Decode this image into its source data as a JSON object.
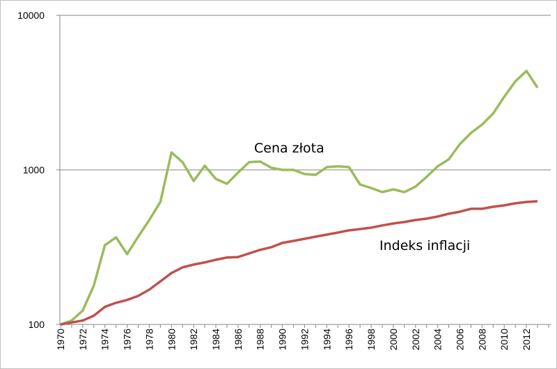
{
  "chart_data": {
    "type": "line",
    "title": "",
    "xlabel": "",
    "ylabel": "",
    "y_scale": "log",
    "ylim": [
      100,
      10000
    ],
    "y_ticks": [
      "100",
      "1000",
      "10000"
    ],
    "x": [
      1970,
      1971,
      1972,
      1973,
      1974,
      1975,
      1976,
      1977,
      1978,
      1979,
      1980,
      1981,
      1982,
      1983,
      1984,
      1985,
      1986,
      1987,
      1988,
      1989,
      1990,
      1991,
      1992,
      1993,
      1994,
      1995,
      1996,
      1997,
      1998,
      1999,
      2000,
      2001,
      2002,
      2003,
      2004,
      2005,
      2006,
      2007,
      2008,
      2009,
      2010,
      2011,
      2012,
      2013
    ],
    "x_tick_labels": [
      "1970",
      "1972",
      "1974",
      "1976",
      "1978",
      "1980",
      "1982",
      "1984",
      "1986",
      "1988",
      "1990",
      "1992",
      "1994",
      "1996",
      "1998",
      "2000",
      "2002",
      "2004",
      "2006",
      "2008",
      "2010",
      "2012"
    ],
    "grid": "horizontal major",
    "legend": "none (inline labels)",
    "series": [
      {
        "name": "Cena złota",
        "color": "#9bbb59",
        "values": [
          100,
          106,
          123,
          179,
          326,
          366,
          285,
          370,
          474,
          621,
          1297,
          1122,
          847,
          1064,
          874,
          813,
          960,
          1122,
          1132,
          1032,
          1000,
          1000,
          940,
          929,
          1042,
          1054,
          1042,
          804,
          764,
          718,
          748,
          718,
          780,
          901,
          1054,
          1169,
          1468,
          1733,
          1963,
          2317,
          2972,
          3733,
          4365,
          3401
        ]
      },
      {
        "name": "Indeks inflacji",
        "color": "#c0504d",
        "values": [
          100,
          103,
          106,
          114,
          130,
          138,
          144,
          153,
          168,
          190,
          215,
          234,
          244,
          252,
          262,
          271,
          273,
          288,
          304,
          316,
          337,
          347,
          358,
          370,
          381,
          393,
          406,
          414,
          423,
          437,
          450,
          460,
          474,
          484,
          499,
          520,
          536,
          560,
          560,
          577,
          589,
          608,
          620,
          627
        ]
      }
    ]
  }
}
